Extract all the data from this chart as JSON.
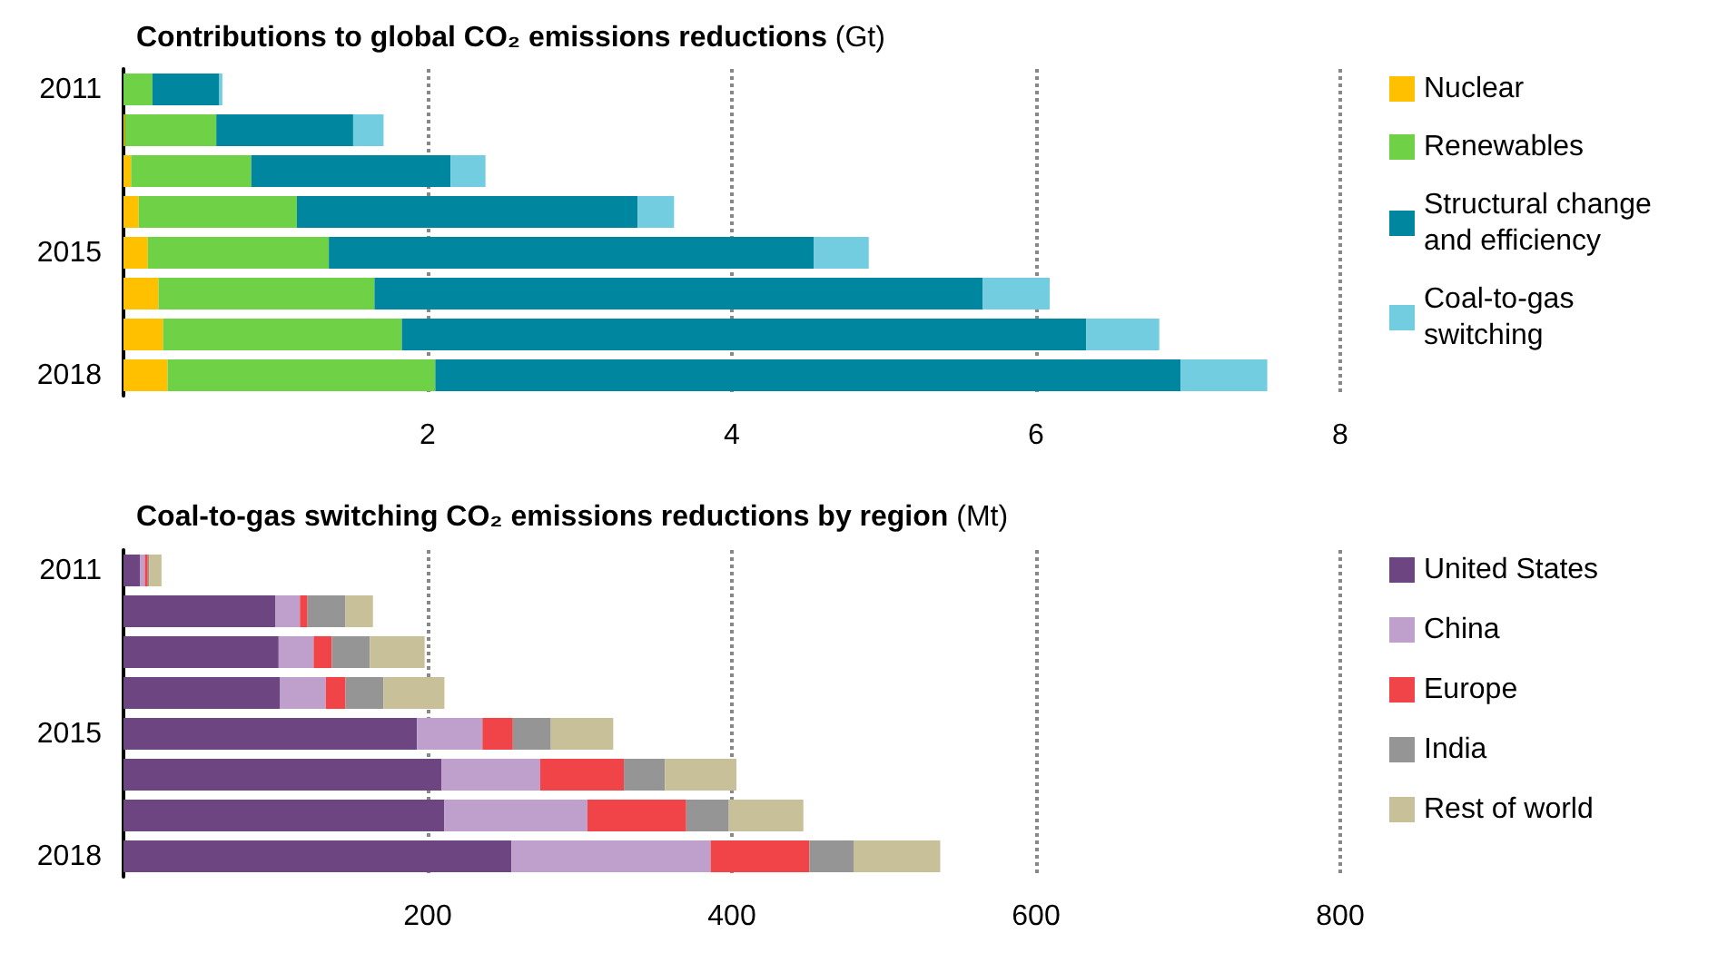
{
  "chart_data": [
    {
      "type": "bar",
      "title": "Contributions to global CO₂ emissions reductions (Gt)",
      "orientation": "horizontal",
      "stacked": true,
      "categories": [
        "2011",
        null,
        null,
        null,
        "2015",
        null,
        null,
        "2018"
      ],
      "series": [
        {
          "name": "Nuclear",
          "color": "#ffc000",
          "values": [
            0,
            0.01,
            0.05,
            0.1,
            0.16,
            0.23,
            0.26,
            0.29
          ]
        },
        {
          "name": "Renewables",
          "color": "#6fd145",
          "values": [
            0.19,
            0.6,
            0.79,
            1.04,
            1.19,
            1.42,
            1.57,
            1.76
          ]
        },
        {
          "name": "Structural change and efficiency",
          "color": "#00869e",
          "values": [
            0.44,
            0.9,
            1.31,
            2.24,
            3.19,
            4.0,
            4.5,
            4.9
          ]
        },
        {
          "name": "Coal-to-gas switching",
          "color": "#72cde0",
          "values": [
            0.02,
            0.2,
            0.23,
            0.24,
            0.36,
            0.44,
            0.48,
            0.57
          ]
        }
      ],
      "xlim": [
        0,
        8
      ],
      "xticks": [
        {
          "value": 0,
          "label": null
        },
        2,
        4,
        6,
        8
      ],
      "grid": "x",
      "legend": "right"
    },
    {
      "type": "bar",
      "title": "Coal-to-gas switching CO₂ emissions reductions by region (Mt)",
      "orientation": "horizontal",
      "stacked": true,
      "categories": [
        "2011",
        null,
        null,
        null,
        "2015",
        null,
        null,
        "2018"
      ],
      "series": [
        {
          "name": "United States",
          "color": "#6d4580",
          "values": [
            11,
            100,
            102,
            103,
            193,
            209,
            211,
            255
          ]
        },
        {
          "name": "China",
          "color": "#bfa0cc",
          "values": [
            3,
            16,
            23,
            30,
            43,
            65,
            94,
            131
          ]
        },
        {
          "name": "Europe",
          "color": "#f04449",
          "values": [
            2,
            5,
            12,
            13,
            20,
            55,
            65,
            65
          ]
        },
        {
          "name": "India",
          "color": "#959595",
          "values": [
            1,
            25,
            25,
            25,
            25,
            27,
            28,
            29
          ]
        },
        {
          "name": "Rest of world",
          "color": "#c8c099",
          "values": [
            8,
            18,
            36,
            40,
            41,
            47,
            49,
            57
          ]
        }
      ],
      "xlim": [
        0,
        800
      ],
      "xticks": [
        {
          "value": 0,
          "label": null
        },
        200,
        400,
        600,
        800
      ],
      "grid": "x",
      "legend": "right"
    }
  ]
}
